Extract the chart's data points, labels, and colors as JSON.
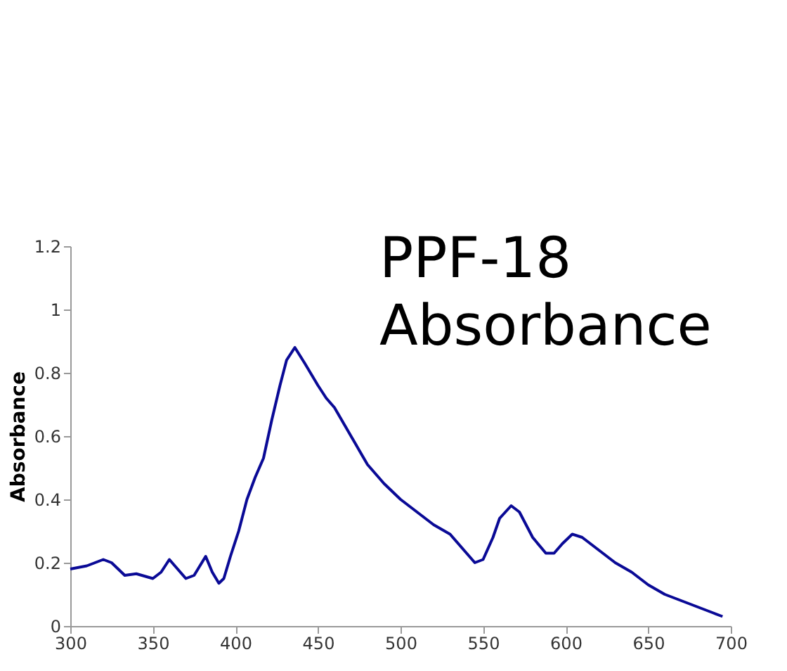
{
  "chart_data": {
    "type": "line",
    "ylabel": "Absorbance",
    "annotations": [
      "PPF-18 Absorbance"
    ],
    "x": [
      300,
      310,
      320,
      325,
      333,
      340,
      350,
      355,
      360,
      365,
      370,
      375,
      382,
      386,
      390,
      393,
      397,
      402,
      407,
      412,
      417,
      422,
      427,
      431,
      436,
      442,
      450,
      455,
      460,
      470,
      480,
      490,
      500,
      510,
      520,
      530,
      540,
      545,
      550,
      556,
      560,
      567,
      572,
      580,
      588,
      593,
      598,
      604,
      610,
      620,
      630,
      640,
      650,
      660,
      670,
      680,
      690,
      695
    ],
    "series": [
      {
        "color": "#0a0a96",
        "values": [
          0.18,
          0.19,
          0.21,
          0.2,
          0.16,
          0.165,
          0.15,
          0.17,
          0.21,
          0.18,
          0.15,
          0.16,
          0.22,
          0.17,
          0.135,
          0.15,
          0.22,
          0.3,
          0.4,
          0.47,
          0.53,
          0.65,
          0.76,
          0.84,
          0.88,
          0.83,
          0.76,
          0.72,
          0.69,
          0.6,
          0.51,
          0.45,
          0.4,
          0.36,
          0.32,
          0.29,
          0.23,
          0.2,
          0.21,
          0.28,
          0.34,
          0.38,
          0.36,
          0.28,
          0.23,
          0.23,
          0.26,
          0.29,
          0.28,
          0.24,
          0.2,
          0.17,
          0.13,
          0.1,
          0.08,
          0.06,
          0.04,
          0.03
        ]
      }
    ],
    "xlim": [
      300,
      700
    ],
    "xticks": [
      300,
      350,
      400,
      450,
      500,
      550,
      600,
      650,
      700
    ],
    "ylim": [
      0,
      1.2
    ],
    "yticks": [
      0,
      0.2,
      0.4,
      0.6,
      0.8,
      1,
      1.2
    ],
    "grid": false,
    "legend": false,
    "marker": "none",
    "line_style": "solid"
  }
}
